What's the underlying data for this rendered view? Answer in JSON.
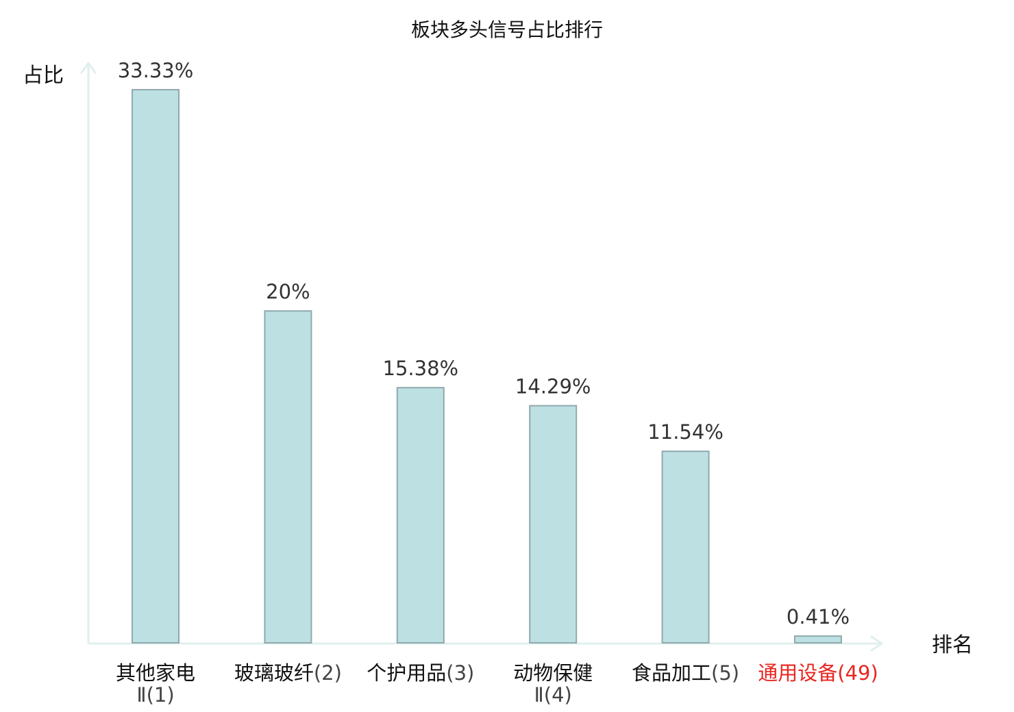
{
  "chart_data": {
    "type": "bar",
    "title": "板块多头信号占比排行",
    "xlabel": "排名",
    "ylabel": "占比",
    "categories": [
      {
        "name_line1": "其他家电",
        "name_line2": "Ⅱ",
        "rank": "(1)",
        "highlight": false
      },
      {
        "name_line1": "玻璃玻纤",
        "name_line2": "",
        "rank": "(2)",
        "highlight": false
      },
      {
        "name_line1": "个护用品",
        "name_line2": "",
        "rank": "(3)",
        "highlight": false
      },
      {
        "name_line1": "动物保健",
        "name_line2": "Ⅱ",
        "rank": "(4)",
        "highlight": false
      },
      {
        "name_line1": "食品加工",
        "name_line2": "",
        "rank": "(5)",
        "highlight": false
      },
      {
        "name_line1": "通用设备",
        "name_line2": "",
        "rank": "(49)",
        "highlight": true
      }
    ],
    "values": [
      33.33,
      20,
      15.38,
      14.29,
      11.54,
      0.41
    ],
    "value_labels": [
      "33.33%",
      "20%",
      "15.38%",
      "14.29%",
      "11.54%",
      "0.41%"
    ],
    "ylim": [
      0,
      33.33
    ],
    "grid": false,
    "legend": "none"
  },
  "colors": {
    "bar_fill": "#bde0e3",
    "bar_stroke": "#8fa9ad",
    "axis": "#dff0ee",
    "highlight": "#e8251f",
    "text": "#111111",
    "value_text": "#333333"
  }
}
